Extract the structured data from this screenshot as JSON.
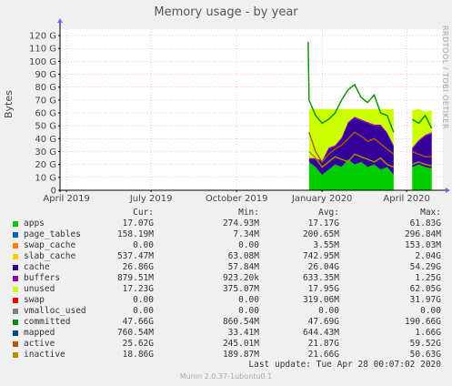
{
  "title": "Memory usage - by year",
  "side_label": "RRDTOOL / TOBI OETIKER",
  "footer": "Munin 2.0.37-1ubuntu0.1",
  "last_update": "Last update: Tue Apr 28 00:07:02 2020",
  "legend_headers": {
    "cur": "Cur:",
    "min": "Min:",
    "avg": "Avg:",
    "max": "Max:"
  },
  "legend": [
    {
      "name": "apps",
      "color": "#00cc00",
      "cur": "17.07G",
      "min": "274.93M",
      "avg": "17.17G",
      "max": "61.83G"
    },
    {
      "name": "page_tables",
      "color": "#0066b3",
      "cur": "158.19M",
      "min": "7.34M",
      "avg": "200.65M",
      "max": "296.84M"
    },
    {
      "name": "swap_cache",
      "color": "#ff8000",
      "cur": "0.00",
      "min": "0.00",
      "avg": "3.55M",
      "max": "153.03M"
    },
    {
      "name": "slab_cache",
      "color": "#ffcc00",
      "cur": "537.47M",
      "min": "63.08M",
      "avg": "742.95M",
      "max": "2.04G"
    },
    {
      "name": "cache",
      "color": "#330099",
      "cur": "26.86G",
      "min": "57.84M",
      "avg": "26.04G",
      "max": "54.29G"
    },
    {
      "name": "buffers",
      "color": "#990099",
      "cur": "879.51M",
      "min": "923.20k",
      "avg": "633.35M",
      "max": "1.25G"
    },
    {
      "name": "unused",
      "color": "#ccff00",
      "cur": "17.23G",
      "min": "375.07M",
      "avg": "17.95G",
      "max": "62.05G"
    },
    {
      "name": "swap",
      "color": "#ff0000",
      "cur": "0.00",
      "min": "0.00",
      "avg": "319.06M",
      "max": "31.97G"
    },
    {
      "name": "vmalloc_used",
      "color": "#808080",
      "cur": "0.00",
      "min": "0.00",
      "avg": "0.00",
      "max": "0.00"
    },
    {
      "name": "committed",
      "color": "#008f00",
      "cur": "47.66G",
      "min": "860.54M",
      "avg": "47.69G",
      "max": "190.66G"
    },
    {
      "name": "mapped",
      "color": "#00487d",
      "cur": "760.54M",
      "min": "33.41M",
      "avg": "644.43M",
      "max": "1.66G"
    },
    {
      "name": "active",
      "color": "#b35a00",
      "cur": "25.62G",
      "min": "245.01M",
      "avg": "21.87G",
      "max": "59.52G"
    },
    {
      "name": "inactive",
      "color": "#b38f00",
      "cur": "18.86G",
      "min": "189.87M",
      "avg": "21.66G",
      "max": "50.63G"
    }
  ],
  "chart_data": {
    "type": "area",
    "title": "Memory usage - by year",
    "ylabel": "Bytes",
    "ylim": [
      0,
      125
    ],
    "y_unit": "G",
    "yticks": [
      0,
      10,
      20,
      30,
      40,
      50,
      60,
      70,
      80,
      90,
      100,
      110,
      120
    ],
    "ytick_labels": [
      "0",
      "10 G",
      "20 G",
      "30 G",
      "40 G",
      "50 G",
      "60 G",
      "70 G",
      "80 G",
      "90 G",
      "100 G",
      "110 G",
      "120 G"
    ],
    "xlim": [
      "2019-03-25",
      "2020-05-10"
    ],
    "xticks": [
      "2019-04-01",
      "2019-07-01",
      "2019-10-01",
      "2020-01-01",
      "2020-04-01"
    ],
    "xtick_labels": [
      "April 2019",
      "July 2019",
      "October 2019",
      "January 2020",
      "April 2020"
    ],
    "grid": true,
    "stack": [
      {
        "name": "apps",
        "color": "#00cc00",
        "values": [
          [
            "2019-12-18",
            22
          ],
          [
            "2019-12-25",
            18
          ],
          [
            "2020-01-01",
            12
          ],
          [
            "2020-01-08",
            16
          ],
          [
            "2020-01-15",
            20
          ],
          [
            "2020-01-22",
            18
          ],
          [
            "2020-01-29",
            24
          ],
          [
            "2020-02-05",
            20
          ],
          [
            "2020-02-12",
            22
          ],
          [
            "2020-02-19",
            18
          ],
          [
            "2020-02-26",
            20
          ],
          [
            "2020-03-04",
            16
          ],
          [
            "2020-03-11",
            18
          ],
          [
            "2020-03-18",
            12
          ],
          [
            "2020-04-07",
            18
          ],
          [
            "2020-04-14",
            20
          ],
          [
            "2020-04-21",
            18
          ],
          [
            "2020-04-28",
            17
          ]
        ]
      },
      {
        "name": "cache",
        "color": "#330099",
        "values": [
          [
            "2019-12-18",
            2
          ],
          [
            "2019-12-25",
            6
          ],
          [
            "2020-01-01",
            10
          ],
          [
            "2020-01-08",
            16
          ],
          [
            "2020-01-15",
            14
          ],
          [
            "2020-01-22",
            22
          ],
          [
            "2020-01-29",
            28
          ],
          [
            "2020-02-05",
            36
          ],
          [
            "2020-02-12",
            32
          ],
          [
            "2020-02-19",
            34
          ],
          [
            "2020-02-26",
            30
          ],
          [
            "2020-03-04",
            34
          ],
          [
            "2020-03-11",
            26
          ],
          [
            "2020-03-18",
            22
          ],
          [
            "2020-04-07",
            14
          ],
          [
            "2020-04-14",
            18
          ],
          [
            "2020-04-21",
            24
          ],
          [
            "2020-04-28",
            27
          ]
        ]
      },
      {
        "name": "buffers",
        "color": "#990099",
        "values": [
          [
            "2019-12-18",
            1
          ],
          [
            "2019-12-25",
            1
          ],
          [
            "2020-01-01",
            1
          ],
          [
            "2020-01-08",
            1
          ],
          [
            "2020-01-15",
            1
          ],
          [
            "2020-01-22",
            1
          ],
          [
            "2020-01-29",
            1
          ],
          [
            "2020-02-05",
            1
          ],
          [
            "2020-02-12",
            1
          ],
          [
            "2020-02-19",
            1
          ],
          [
            "2020-02-26",
            1
          ],
          [
            "2020-03-04",
            1
          ],
          [
            "2020-03-11",
            1
          ],
          [
            "2020-03-18",
            1
          ],
          [
            "2020-04-07",
            1
          ],
          [
            "2020-04-14",
            1
          ],
          [
            "2020-04-21",
            1
          ],
          [
            "2020-04-28",
            1
          ]
        ]
      },
      {
        "name": "unused",
        "color": "#ccff00",
        "values": [
          [
            "2019-12-18",
            38
          ],
          [
            "2019-12-25",
            38
          ],
          [
            "2020-01-01",
            40
          ],
          [
            "2020-01-08",
            30
          ],
          [
            "2020-01-15",
            28
          ],
          [
            "2020-01-22",
            22
          ],
          [
            "2020-01-29",
            10
          ],
          [
            "2020-02-05",
            6
          ],
          [
            "2020-02-12",
            8
          ],
          [
            "2020-02-19",
            10
          ],
          [
            "2020-02-26",
            12
          ],
          [
            "2020-03-04",
            12
          ],
          [
            "2020-03-11",
            18
          ],
          [
            "2020-03-18",
            28
          ],
          [
            "2020-04-07",
            29
          ],
          [
            "2020-04-14",
            24
          ],
          [
            "2020-04-21",
            18
          ],
          [
            "2020-04-28",
            17
          ]
        ]
      }
    ],
    "lines": [
      {
        "name": "committed",
        "color": "#008f00",
        "values": [
          [
            "2019-12-17",
            115
          ],
          [
            "2019-12-18",
            70
          ],
          [
            "2019-12-25",
            58
          ],
          [
            "2020-01-01",
            52
          ],
          [
            "2020-01-08",
            55
          ],
          [
            "2020-01-15",
            60
          ],
          [
            "2020-01-22",
            70
          ],
          [
            "2020-01-29",
            78
          ],
          [
            "2020-02-05",
            82
          ],
          [
            "2020-02-12",
            72
          ],
          [
            "2020-02-19",
            68
          ],
          [
            "2020-02-26",
            74
          ],
          [
            "2020-03-04",
            60
          ],
          [
            "2020-03-11",
            58
          ],
          [
            "2020-03-18",
            45
          ],
          [
            "2020-04-07",
            55
          ],
          [
            "2020-04-14",
            52
          ],
          [
            "2020-04-21",
            58
          ],
          [
            "2020-04-28",
            48
          ]
        ]
      },
      {
        "name": "active",
        "color": "#b35a00",
        "values": [
          [
            "2019-12-18",
            45
          ],
          [
            "2019-12-25",
            30
          ],
          [
            "2020-01-01",
            22
          ],
          [
            "2020-01-08",
            28
          ],
          [
            "2020-01-15",
            32
          ],
          [
            "2020-01-22",
            35
          ],
          [
            "2020-01-29",
            40
          ],
          [
            "2020-02-05",
            45
          ],
          [
            "2020-02-12",
            42
          ],
          [
            "2020-02-19",
            38
          ],
          [
            "2020-02-26",
            40
          ],
          [
            "2020-03-04",
            36
          ],
          [
            "2020-03-11",
            32
          ],
          [
            "2020-03-18",
            28
          ],
          [
            "2020-04-07",
            30
          ],
          [
            "2020-04-14",
            28
          ],
          [
            "2020-04-21",
            26
          ],
          [
            "2020-04-28",
            26
          ]
        ]
      },
      {
        "name": "inactive",
        "color": "#b38f00",
        "values": [
          [
            "2019-12-18",
            30
          ],
          [
            "2019-12-25",
            25
          ],
          [
            "2020-01-01",
            18
          ],
          [
            "2020-01-08",
            22
          ],
          [
            "2020-01-15",
            26
          ],
          [
            "2020-01-22",
            24
          ],
          [
            "2020-01-29",
            22
          ],
          [
            "2020-02-05",
            28
          ],
          [
            "2020-02-12",
            26
          ],
          [
            "2020-02-19",
            24
          ],
          [
            "2020-02-26",
            22
          ],
          [
            "2020-03-04",
            25
          ],
          [
            "2020-03-11",
            20
          ],
          [
            "2020-03-18",
            18
          ],
          [
            "2020-04-07",
            20
          ],
          [
            "2020-04-14",
            22
          ],
          [
            "2020-04-21",
            20
          ],
          [
            "2020-04-28",
            19
          ]
        ]
      }
    ]
  }
}
